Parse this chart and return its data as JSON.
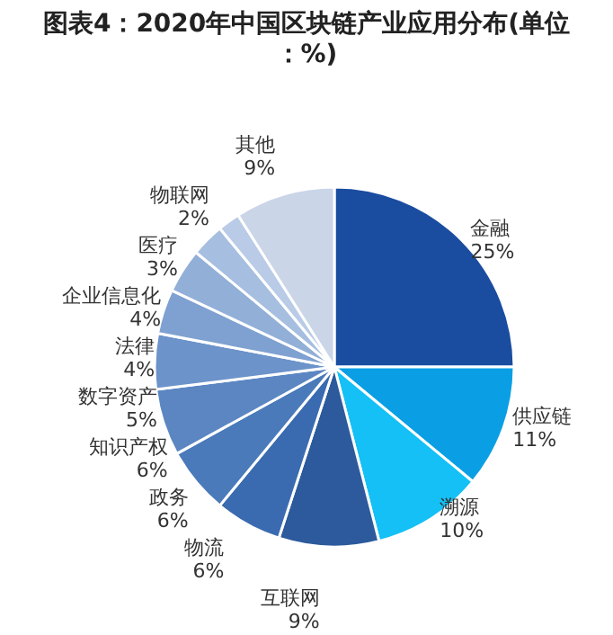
{
  "chart_data": {
    "type": "pie",
    "title": "图表4：2020年中国区块链产业应用分布(单位：%)",
    "categories": [
      "金融",
      "供应链",
      "溯源",
      "互联网",
      "物流",
      "政务",
      "知识产权",
      "数字资产",
      "法律",
      "企业信息化",
      "医疗",
      "物联网",
      "其他"
    ],
    "values": [
      25,
      11,
      10,
      9,
      6,
      6,
      6,
      5,
      4,
      4,
      3,
      2,
      9
    ],
    "value_labels": [
      "25%",
      "11%",
      "10%",
      "9%",
      "6%",
      "6%",
      "6%",
      "5%",
      "4%",
      "4%",
      "3%",
      "2%",
      "9%"
    ],
    "colors": [
      "#1a4ca0",
      "#0a9fe4",
      "#14c0f5",
      "#2c5a9c",
      "#3a6bb0",
      "#4a7aba",
      "#5b86c2",
      "#6c93ca",
      "#7fa1d1",
      "#92afd8",
      "#a6bedf",
      "#b9cbe6",
      "#cad5e8"
    ],
    "legend": false
  }
}
